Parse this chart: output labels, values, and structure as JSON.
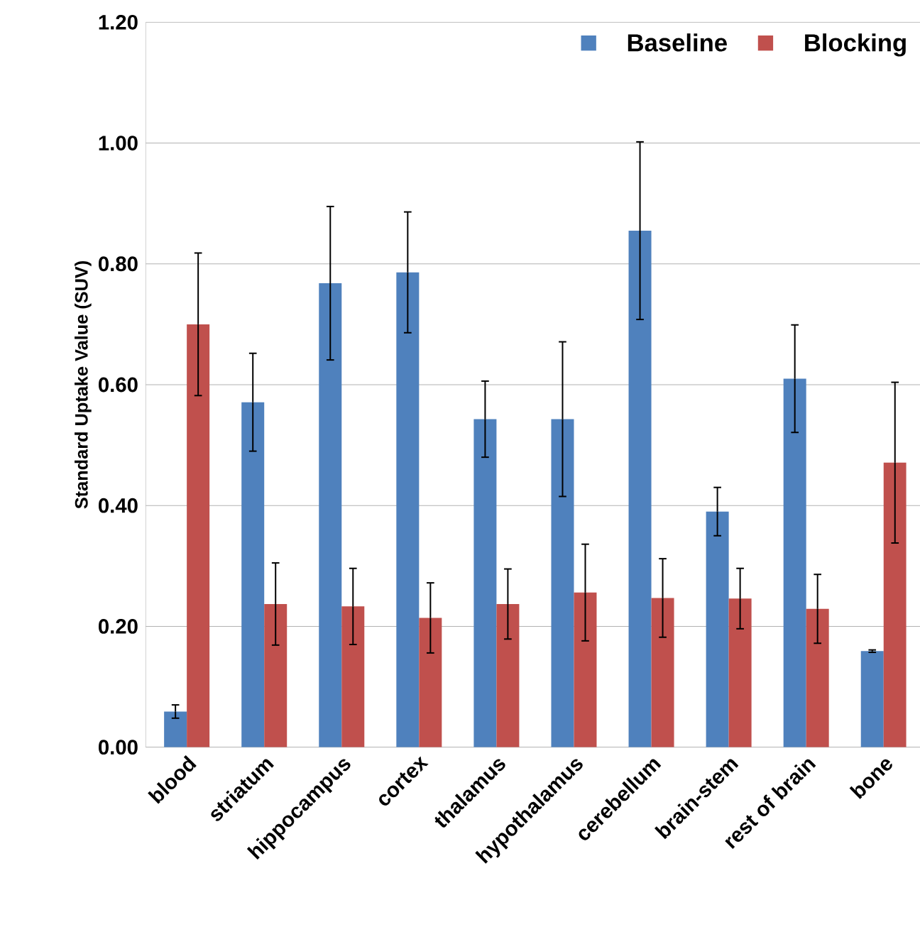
{
  "chart_data": {
    "type": "bar",
    "ylabel": "Standard Uptake Value (SUV)",
    "categories": [
      "blood",
      "striatum",
      "hippocampus",
      "cortex",
      "thalamus",
      "hypothalamus",
      "cerebellum",
      "brain-stem",
      "rest of brain",
      "bone"
    ],
    "series": [
      {
        "name": "Baseline",
        "color": "#4f81bd",
        "values": [
          0.059,
          0.571,
          0.768,
          0.786,
          0.543,
          0.543,
          0.855,
          0.39,
          0.61,
          0.159
        ],
        "errors": [
          0.011,
          0.081,
          0.127,
          0.1,
          0.063,
          0.128,
          0.147,
          0.04,
          0.089,
          0.002
        ]
      },
      {
        "name": "Blocking",
        "color": "#c0504d",
        "values": [
          0.7,
          0.237,
          0.233,
          0.214,
          0.237,
          0.256,
          0.247,
          0.246,
          0.229,
          0.471
        ],
        "errors": [
          0.118,
          0.068,
          0.063,
          0.058,
          0.058,
          0.08,
          0.065,
          0.05,
          0.057,
          0.133
        ]
      }
    ],
    "ylim": [
      0,
      1.2
    ],
    "yticks": [
      {
        "value": 0,
        "label": "0.00"
      },
      {
        "value": 0.2,
        "label": "0.20"
      },
      {
        "value": 0.4,
        "label": "0.40"
      },
      {
        "value": 0.6,
        "label": "0.60"
      },
      {
        "value": 0.8,
        "label": "0.80"
      },
      {
        "value": 1.0,
        "label": "1.00"
      },
      {
        "value": 1.2,
        "label": "1.20"
      }
    ],
    "grid": "y",
    "legend": "top right"
  }
}
